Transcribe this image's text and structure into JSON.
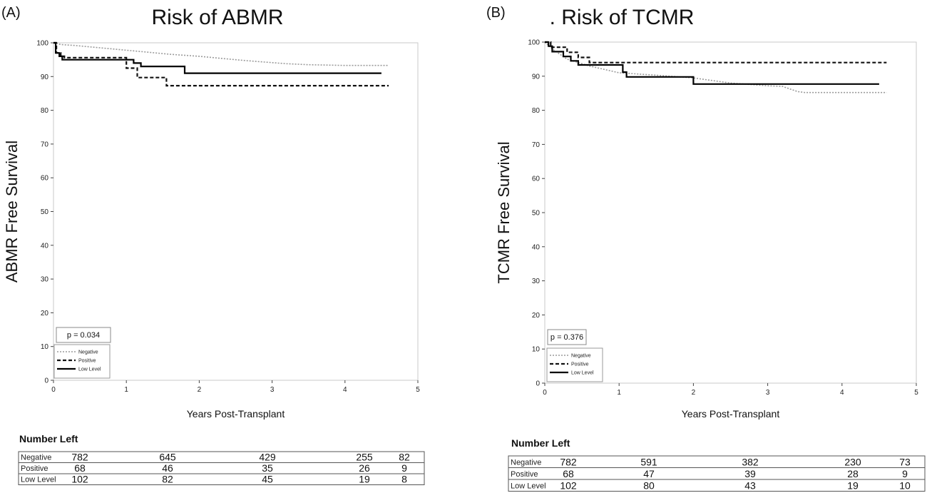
{
  "chart_data": [
    {
      "type": "line",
      "panel_label": "(A)",
      "title": "Risk of ABMR",
      "xlabel": "Years Post-Transplant",
      "ylabel": "ABMR Free Survival",
      "xlim": [
        0,
        5
      ],
      "ylim": [
        0,
        100
      ],
      "xticks": [
        "0",
        "1",
        "2",
        "3",
        "4",
        "5"
      ],
      "yticks": [
        "0",
        "10",
        "20",
        "30",
        "40",
        "50",
        "60",
        "70",
        "80",
        "90",
        "100"
      ],
      "p_value": "p = 0.034",
      "legend_position": "bottom-left",
      "series": [
        {
          "name": "Negative",
          "style": "dotted",
          "color": "#9a9a9a",
          "points": [
            [
              0,
              100
            ],
            [
              0.1,
              99.5
            ],
            [
              0.3,
              99.2
            ],
            [
              0.5,
              98.8
            ],
            [
              0.8,
              98.2
            ],
            [
              1.0,
              97.8
            ],
            [
              1.3,
              97.2
            ],
            [
              1.6,
              96.6
            ],
            [
              2.0,
              96
            ],
            [
              2.3,
              95.4
            ],
            [
              2.6,
              94.8
            ],
            [
              2.9,
              94.3
            ],
            [
              3.2,
              93.8
            ],
            [
              3.5,
              93.5
            ],
            [
              4.0,
              93.3
            ],
            [
              4.6,
              93.3
            ]
          ]
        },
        {
          "name": "Positive",
          "style": "dashed",
          "color": "#111111",
          "points": [
            [
              0,
              100
            ],
            [
              0.04,
              100
            ],
            [
              0.04,
              97
            ],
            [
              0.1,
              97
            ],
            [
              0.1,
              96
            ],
            [
              0.15,
              96
            ],
            [
              0.15,
              95.6
            ],
            [
              1.0,
              95.6
            ],
            [
              1.0,
              92.5
            ],
            [
              1.15,
              92.5
            ],
            [
              1.15,
              89.7
            ],
            [
              1.55,
              89.7
            ],
            [
              1.55,
              87.3
            ],
            [
              4.6,
              87.3
            ]
          ]
        },
        {
          "name": "Low Level",
          "style": "solid",
          "color": "#000000",
          "points": [
            [
              0,
              100
            ],
            [
              0.03,
              100
            ],
            [
              0.03,
              97
            ],
            [
              0.08,
              97
            ],
            [
              0.08,
              96
            ],
            [
              0.12,
              96
            ],
            [
              0.12,
              95
            ],
            [
              1.1,
              95
            ],
            [
              1.1,
              94
            ],
            [
              1.2,
              94
            ],
            [
              1.2,
              93
            ],
            [
              1.8,
              93
            ],
            [
              1.8,
              91
            ],
            [
              4.5,
              91
            ]
          ]
        }
      ],
      "number_left": {
        "title": "Number Left",
        "rows": [
          {
            "label": "Negative",
            "values": [
              "782",
              "645",
              "429",
              "255",
              "82"
            ]
          },
          {
            "label": "Positive",
            "values": [
              "68",
              "46",
              "35",
              "26",
              "9"
            ]
          },
          {
            "label": "Low Level",
            "values": [
              "102",
              "82",
              "45",
              "19",
              "8"
            ]
          }
        ]
      }
    },
    {
      "type": "line",
      "panel_label": "(B)",
      "title": ". Risk of TCMR",
      "xlabel": "Years Post-Transplant",
      "ylabel": "TCMR Free Survival",
      "xlim": [
        0,
        5
      ],
      "ylim": [
        0,
        100
      ],
      "xticks": [
        "0",
        "1",
        "2",
        "3",
        "4",
        "5"
      ],
      "yticks": [
        "0",
        "10",
        "20",
        "30",
        "40",
        "50",
        "60",
        "70",
        "80",
        "90",
        "100"
      ],
      "p_value": "p = 0.376",
      "legend_position": "bottom-left",
      "series": [
        {
          "name": "Negative",
          "style": "dotted",
          "color": "#9a9a9a",
          "points": [
            [
              0,
              100
            ],
            [
              0.1,
              98
            ],
            [
              0.3,
              95
            ],
            [
              0.6,
              93
            ],
            [
              1.0,
              91
            ],
            [
              1.5,
              90.3
            ],
            [
              2.0,
              89.5
            ],
            [
              2.5,
              88
            ],
            [
              3.0,
              87.2
            ],
            [
              3.2,
              87
            ],
            [
              3.4,
              85.5
            ],
            [
              3.5,
              85.2
            ],
            [
              4.6,
              85.2
            ]
          ]
        },
        {
          "name": "Positive",
          "style": "dashed",
          "color": "#111111",
          "points": [
            [
              0,
              100
            ],
            [
              0.08,
              100
            ],
            [
              0.08,
              98.5
            ],
            [
              0.3,
              98.5
            ],
            [
              0.3,
              97
            ],
            [
              0.45,
              97
            ],
            [
              0.45,
              95.5
            ],
            [
              0.6,
              95.5
            ],
            [
              0.6,
              94
            ],
            [
              4.6,
              94
            ]
          ]
        },
        {
          "name": "Low Level",
          "style": "solid",
          "color": "#000000",
          "points": [
            [
              0,
              100
            ],
            [
              0.05,
              100
            ],
            [
              0.05,
              98.8
            ],
            [
              0.1,
              98.8
            ],
            [
              0.1,
              97.2
            ],
            [
              0.25,
              97.2
            ],
            [
              0.25,
              95.8
            ],
            [
              0.35,
              95.8
            ],
            [
              0.35,
              94.5
            ],
            [
              0.45,
              94.5
            ],
            [
              0.45,
              93.3
            ],
            [
              1.05,
              93.3
            ],
            [
              1.05,
              91.2
            ],
            [
              1.1,
              91.2
            ],
            [
              1.1,
              89.8
            ],
            [
              2.0,
              89.8
            ],
            [
              2.0,
              87.7
            ],
            [
              4.5,
              87.7
            ]
          ]
        }
      ],
      "number_left": {
        "title": "Number Left",
        "rows": [
          {
            "label": "Negative",
            "values": [
              "782",
              "591",
              "382",
              "230",
              "73"
            ]
          },
          {
            "label": "Positive",
            "values": [
              "68",
              "47",
              "39",
              "28",
              "9"
            ]
          },
          {
            "label": "Low Level",
            "values": [
              "102",
              "80",
              "43",
              "19",
              "10"
            ]
          }
        ]
      }
    }
  ]
}
